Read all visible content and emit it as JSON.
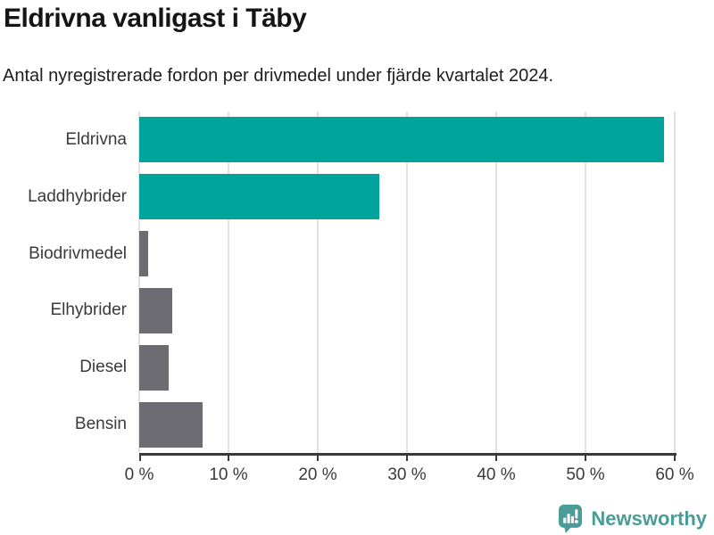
{
  "chart_data": {
    "type": "bar",
    "orientation": "horizontal",
    "title": "Eldrivna vanligast i Täby",
    "subtitle": "Antal nyregistrerade fordon per drivmedel under fjärde kvartalet 2024.",
    "categories": [
      "Eldrivna",
      "Laddhybrider",
      "Biodrivmedel",
      "Elhybrider",
      "Diesel",
      "Bensin"
    ],
    "values": [
      58.8,
      26.9,
      1.0,
      3.7,
      3.3,
      7.1
    ],
    "unit": "%",
    "xlim": [
      0,
      60
    ],
    "x_tick_values": [
      0,
      10,
      20,
      30,
      40,
      50,
      60
    ],
    "x_tick_labels": [
      "0 %",
      "10 %",
      "20 %",
      "30 %",
      "40 %",
      "50 %",
      "60 %"
    ],
    "grid": true,
    "legend": "none",
    "colors": {
      "highlight": "#00a49c",
      "default": "#6c6c72",
      "bar_colors": [
        "#00a49c",
        "#00a49c",
        "#6c6c72",
        "#6c6c72",
        "#6c6c72",
        "#6c6c72"
      ],
      "gridline": "#e3e3e3",
      "axis": "#3a3a3a",
      "text": "#3a3a3a"
    }
  },
  "footer": {
    "brand": "Newsworthy",
    "logo_icon": "speech-bubble-bar-chart-exclamation",
    "brand_color": "#4a9c98"
  }
}
